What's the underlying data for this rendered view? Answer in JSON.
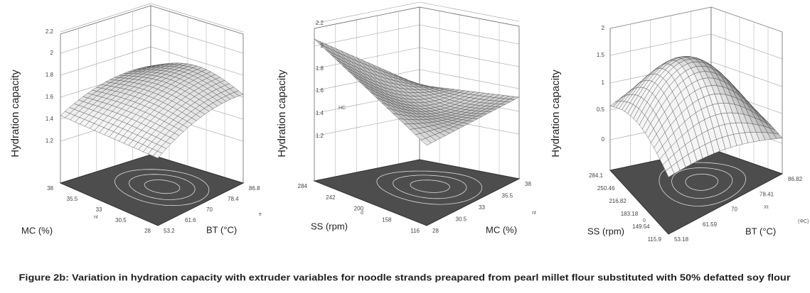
{
  "figure": {
    "panels": [
      {
        "y_label": "Hydration capacity",
        "z_ticks": [
          "2.2",
          "2",
          "1.8",
          "1.6",
          "1.4",
          "1.2"
        ],
        "left_axis_title": "MC (%)",
        "left_ticks": [
          "38",
          "35.5",
          "33",
          "30.5",
          "28"
        ],
        "right_axis_title": "BT (°C)",
        "right_ticks": [
          "53.2",
          "61.6",
          "70",
          "78.4",
          "86.8"
        ],
        "stray_labels": [
          "nt",
          "e"
        ]
      },
      {
        "y_label": "Hydration capacity",
        "z_ticks": [
          "2.2",
          "2",
          "1.8",
          "1.6",
          "1.4",
          "1.2"
        ],
        "left_axis_title": "SS (rpm)",
        "left_ticks": [
          "284",
          "242",
          "200",
          "158",
          "116"
        ],
        "right_axis_title": "MC (%)",
        "right_ticks": [
          "28",
          "30.5",
          "33",
          "35.5",
          "38"
        ],
        "stray_labels": [
          "HC",
          "d",
          "nt"
        ]
      },
      {
        "y_label": "Hydration capacity",
        "z_ticks": [
          "2",
          "1.5",
          "1",
          "0.5",
          "0"
        ],
        "left_axis_title": "SS (rpm)",
        "left_ticks": [
          "284.1",
          "250.46",
          "216.82",
          "183.18",
          "149.54",
          "115.9"
        ],
        "right_axis_title": "BT (°C)",
        "right_ticks": [
          "53.18",
          "61.59",
          "70",
          "78.41",
          "86.82"
        ],
        "stray_labels": [
          "0",
          "Xt",
          "(ΦC)"
        ]
      }
    ],
    "caption": "Figure 2b: Variation in hydration capacity with extruder variables for noodle strands preapared from pearl millet flour substituted with 50% defatted soy flour"
  }
}
